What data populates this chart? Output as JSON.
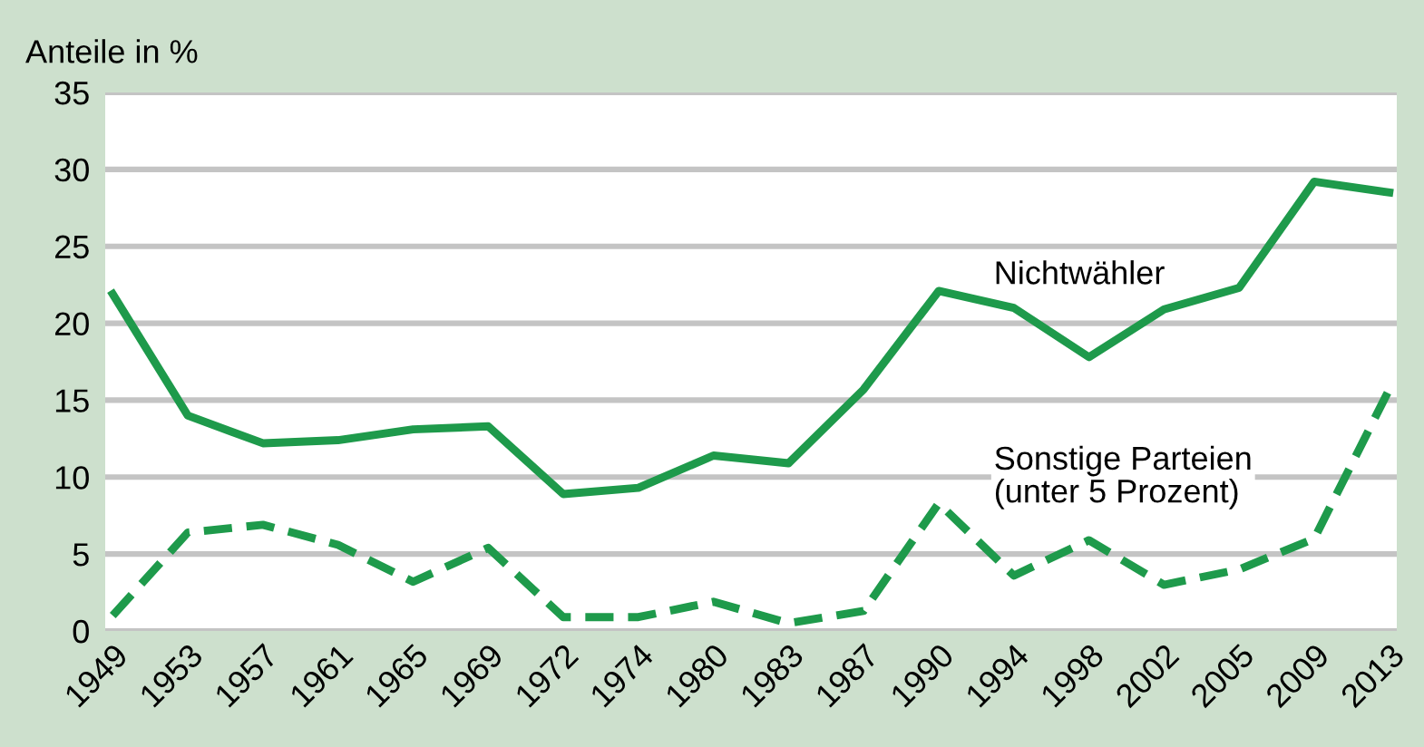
{
  "chart_data": {
    "type": "line",
    "ylabel": "Anteile in %",
    "categories": [
      "1949",
      "1953",
      "1957",
      "1961",
      "1965",
      "1969",
      "1972",
      "1974",
      "1980",
      "1983",
      "1987",
      "1990",
      "1994",
      "1998",
      "2002",
      "2005",
      "2009",
      "2013"
    ],
    "series": [
      {
        "color": "#1e9a4b",
        "line_style": "solid",
        "values": [
          21.9,
          14.0,
          12.2,
          12.4,
          13.1,
          13.3,
          8.9,
          9.3,
          11.4,
          10.9,
          15.7,
          22.1,
          21.0,
          17.8,
          20.9,
          22.3,
          29.2,
          28.5
        ]
      },
      {
        "color": "#1e9a4b",
        "line_style": "dashed",
        "values": [
          1.0,
          6.4,
          6.9,
          5.6,
          3.2,
          5.4,
          0.9,
          0.9,
          1.9,
          0.5,
          1.3,
          8.3,
          3.6,
          5.9,
          3.0,
          4.0,
          6.0,
          15.7
        ]
      }
    ],
    "annotations": [
      "Nichtwähler",
      "Sonstige Parteien\n(unter 5 Prozent)"
    ],
    "ylim": [
      0,
      35
    ],
    "yticks": [
      0,
      5,
      10,
      15,
      20,
      25,
      30,
      35
    ],
    "grid": "y",
    "marker": "none"
  }
}
